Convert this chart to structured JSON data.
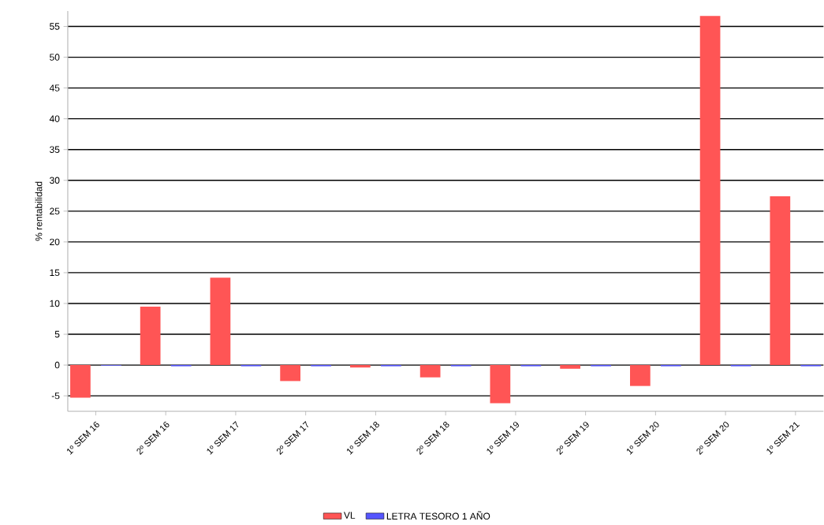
{
  "chart_data": {
    "type": "bar",
    "categories": [
      "1º SEM 16",
      "2º SEM 16",
      "1º SEM 17",
      "2º SEM 17",
      "1º SEM 18",
      "2º SEM 18",
      "1º SEM 19",
      "2º SEM 19",
      "1º SEM 20",
      "2º SEM 20",
      "1º SEM 21"
    ],
    "series": [
      {
        "name": "VL",
        "color": "#ff5555",
        "values": [
          -5.3,
          9.5,
          14.2,
          -2.6,
          -0.4,
          -2.0,
          -6.2,
          -0.6,
          -3.4,
          56.7,
          27.4
        ]
      },
      {
        "name": "LETRA TESORO 1 AÑO",
        "color": "#5555ff",
        "values": [
          -0.1,
          -0.2,
          -0.2,
          -0.2,
          -0.2,
          -0.2,
          -0.2,
          -0.2,
          -0.2,
          -0.2,
          -0.2
        ]
      }
    ],
    "ylabel": "% rentabilidad",
    "ylim": [
      -7.5,
      57.5
    ],
    "yticks": [
      -5,
      0,
      5,
      10,
      15,
      20,
      25,
      30,
      35,
      40,
      45,
      50,
      55
    ],
    "grid": "y",
    "legend": "bottom"
  }
}
